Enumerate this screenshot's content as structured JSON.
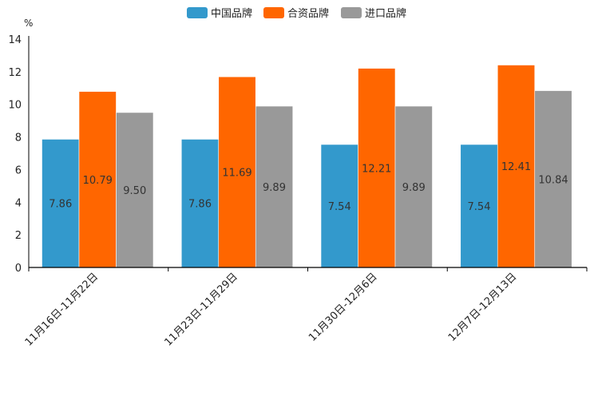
{
  "chart_data": {
    "type": "bar",
    "title": "",
    "ylabel": "%",
    "xlabel": "",
    "ylim": [
      0,
      14
    ],
    "yticks": [
      0,
      2,
      4,
      6,
      8,
      10,
      12,
      14
    ],
    "grid": false,
    "legend_position": "top-center",
    "categories": [
      "11月16日-11月22日",
      "11月23日-11月29日",
      "11月30日-12月6日",
      "12月7日-12月13日"
    ],
    "series": [
      {
        "name": "中国品牌",
        "color": "#3399cc",
        "values": [
          7.86,
          7.86,
          7.54,
          7.54
        ],
        "labels": [
          "7.86",
          "7.86",
          "7.54",
          "7.54"
        ]
      },
      {
        "name": "合资品牌",
        "color": "#ff6600",
        "values": [
          10.79,
          11.69,
          12.21,
          12.41
        ],
        "labels": [
          "10.79",
          "11.69",
          "12.21",
          "12.41"
        ]
      },
      {
        "name": "进口品牌",
        "color": "#999999",
        "values": [
          9.5,
          9.89,
          9.89,
          10.84
        ],
        "labels": [
          "9.50",
          "9.89",
          "9.89",
          "10.84"
        ]
      }
    ]
  }
}
